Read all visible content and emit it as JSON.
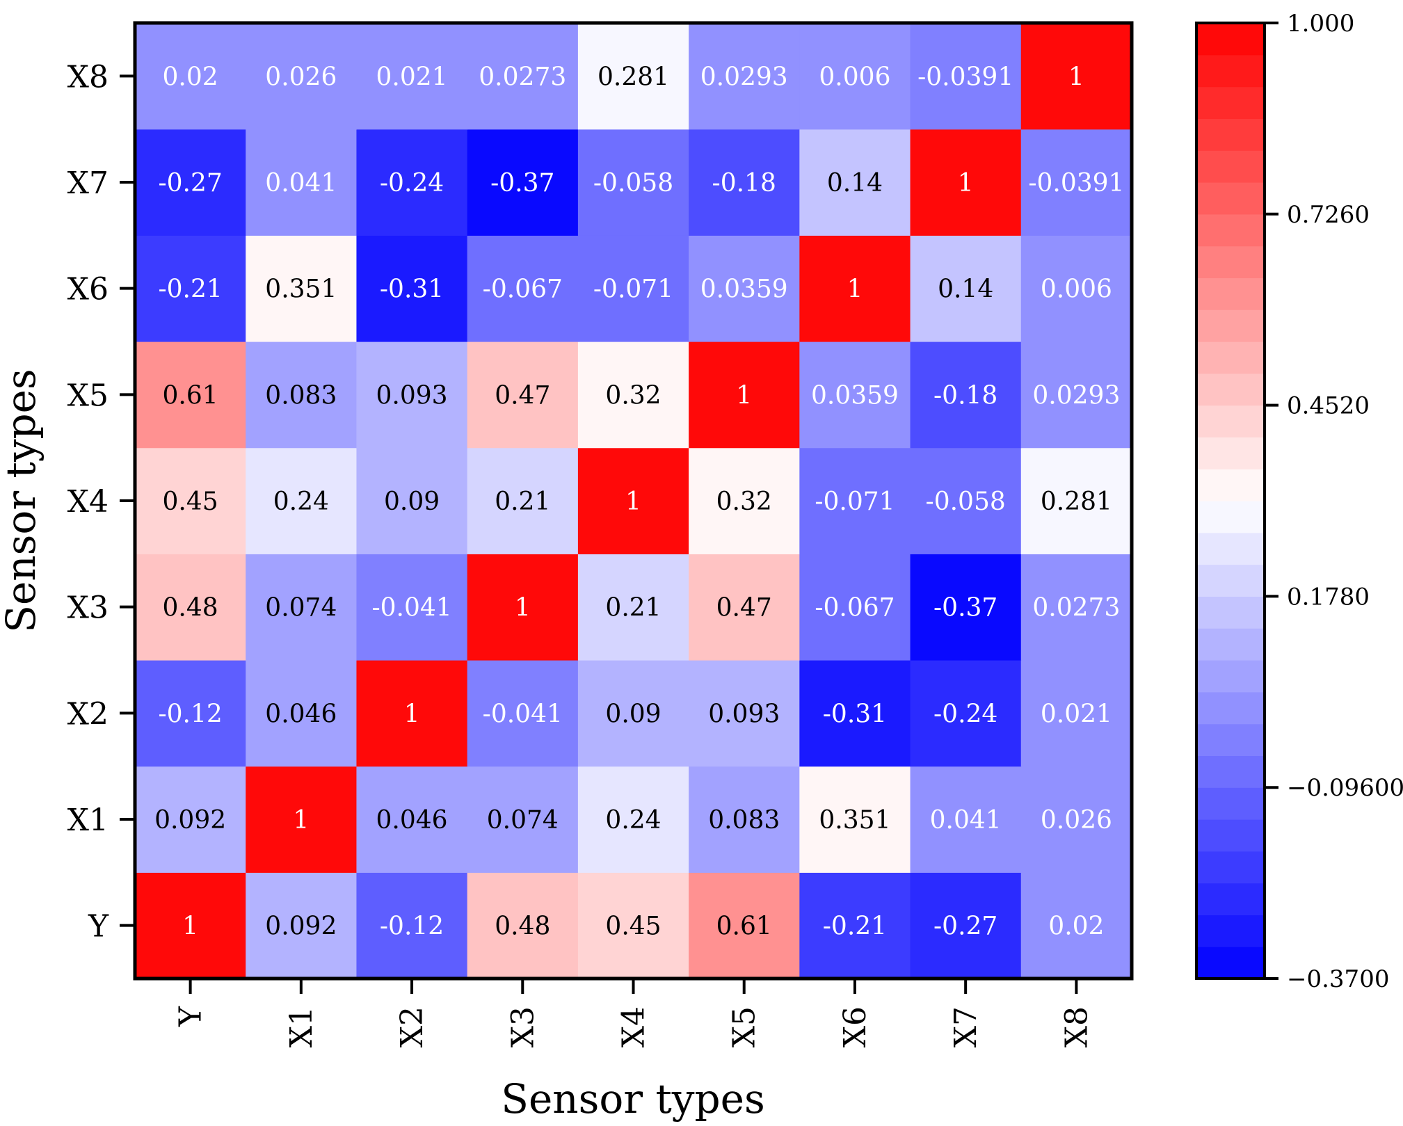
{
  "chart_data": {
    "type": "heatmap",
    "title": "",
    "xlabel": "Sensor types",
    "ylabel": "Sensor types",
    "x_categories": [
      "Y",
      "X1",
      "X2",
      "X3",
      "X4",
      "X5",
      "X6",
      "X7",
      "X8"
    ],
    "y_categories": [
      "Y",
      "X1",
      "X2",
      "X3",
      "X4",
      "X5",
      "X6",
      "X7",
      "X8"
    ],
    "matrix": [
      [
        1,
        0.092,
        -0.12,
        0.48,
        0.45,
        0.61,
        -0.21,
        -0.27,
        0.02
      ],
      [
        0.092,
        1,
        0.046,
        0.074,
        0.24,
        0.083,
        0.351,
        0.041,
        0.026
      ],
      [
        -0.12,
        0.046,
        1,
        -0.041,
        0.09,
        0.093,
        -0.31,
        -0.24,
        0.021
      ],
      [
        0.48,
        0.074,
        -0.041,
        1,
        0.21,
        0.47,
        -0.067,
        -0.37,
        0.0273
      ],
      [
        0.45,
        0.24,
        0.09,
        0.21,
        1,
        0.32,
        -0.071,
        -0.058,
        0.281
      ],
      [
        0.61,
        0.083,
        0.093,
        0.47,
        0.32,
        1,
        0.0359,
        -0.18,
        0.0293
      ],
      [
        -0.21,
        0.351,
        -0.31,
        -0.067,
        -0.071,
        0.0359,
        1,
        0.14,
        0.006
      ],
      [
        -0.27,
        0.041,
        -0.24,
        -0.37,
        -0.058,
        -0.18,
        0.14,
        1,
        -0.0391
      ],
      [
        0.02,
        0.026,
        0.021,
        0.0273,
        0.281,
        0.0293,
        0.006,
        -0.0391,
        1
      ]
    ],
    "cell_labels": [
      [
        "1",
        "0.092",
        "-0.12",
        "0.48",
        "0.45",
        "0.61",
        "-0.21",
        "-0.27",
        "0.02"
      ],
      [
        "0.092",
        "1",
        "0.046",
        "0.074",
        "0.24",
        "0.083",
        "0.351",
        "0.041",
        "0.026"
      ],
      [
        "-0.12",
        "0.046",
        "1",
        "-0.041",
        "0.09",
        "0.093",
        "-0.31",
        "-0.24",
        "0.021"
      ],
      [
        "0.48",
        "0.074",
        "-0.041",
        "1",
        "0.21",
        "0.47",
        "-0.067",
        "-0.37",
        "0.0273"
      ],
      [
        "0.45",
        "0.24",
        "0.09",
        "0.21",
        "1",
        "0.32",
        "-0.071",
        "-0.058",
        "0.281"
      ],
      [
        "0.61",
        "0.083",
        "0.093",
        "0.47",
        "0.32",
        "1",
        "0.0359",
        "-0.18",
        "0.0293"
      ],
      [
        "-0.21",
        "0.351",
        "-0.31",
        "-0.067",
        "-0.071",
        "0.0359",
        "1",
        "0.14",
        "0.006"
      ],
      [
        "-0.27",
        "0.041",
        "-0.24",
        "-0.37",
        "-0.058",
        "-0.18",
        "0.14",
        "1",
        "-0.0391"
      ],
      [
        "0.02",
        "0.026",
        "0.021",
        "0.0273",
        "0.281",
        "0.0293",
        "0.006",
        "-0.0391",
        "1"
      ]
    ],
    "colorbar": {
      "min": -0.37,
      "max": 1.0,
      "levels": 30,
      "colormap": "bwr",
      "ticks": [
        -0.37,
        -0.096,
        0.178,
        0.452,
        0.726,
        1.0
      ],
      "tick_labels": [
        "−0.3700",
        "−0.09600",
        "0.1780",
        "0.4520",
        "0.7260",
        "1.000"
      ]
    },
    "colors": {
      "low": "#0000ff",
      "mid": "#ffffff",
      "high": "#ff0000"
    }
  }
}
